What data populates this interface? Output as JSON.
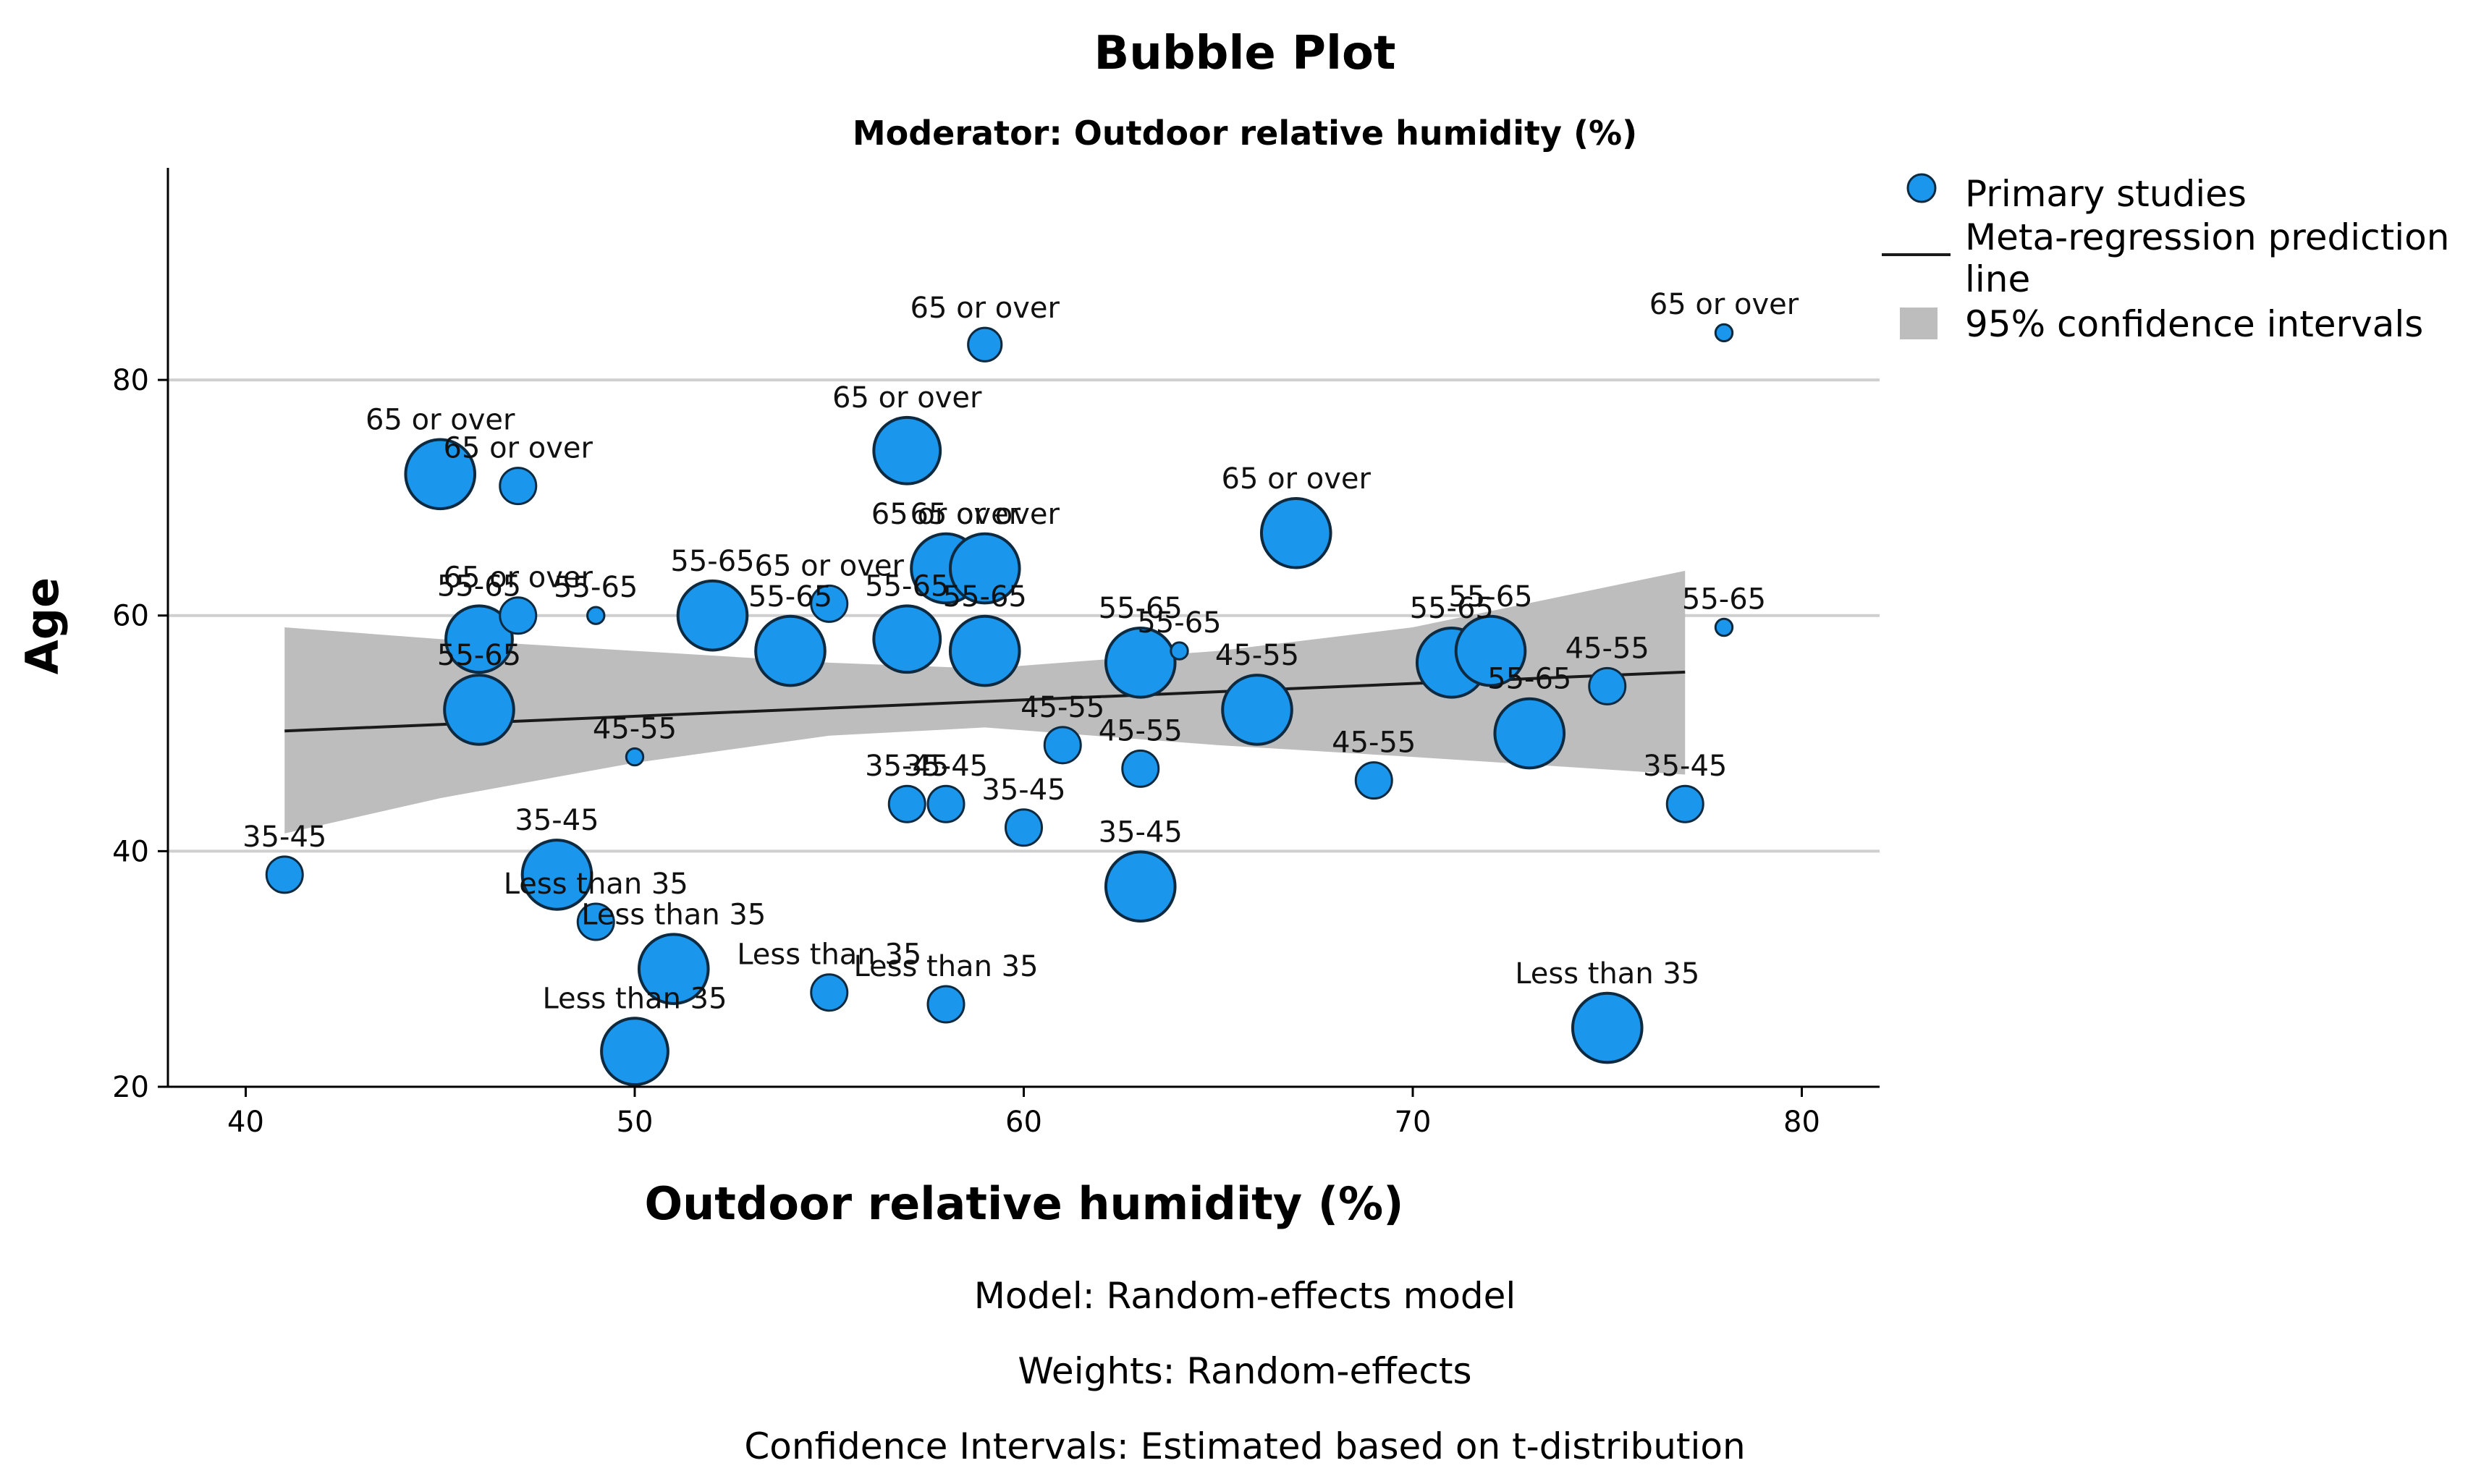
{
  "colors": {
    "bubble_fill": "#1a96ec",
    "bubble_stroke": "#0d2a40",
    "ci_fill": "#bdbdbd",
    "line": "#1a1a1a",
    "grid": "#cfcfcf",
    "axis": "#000000"
  },
  "chart_data": {
    "type": "scatter",
    "title": "Bubble Plot",
    "subtitle": "Moderator: Outdoor relative humidity (%)",
    "xlabel": "Outdoor relative humidity (%)",
    "ylabel": "Age",
    "xlim": [
      38,
      82
    ],
    "ylim": [
      20,
      98
    ],
    "xticks": [
      40,
      50,
      60,
      70,
      80
    ],
    "yticks": [
      20,
      40,
      60,
      80
    ],
    "grid": "horizontal",
    "legend_position": "top-right",
    "legend": [
      {
        "kind": "marker",
        "label": "Primary studies"
      },
      {
        "kind": "line",
        "label": "Meta-regression prediction line"
      },
      {
        "kind": "area",
        "label": "95% confidence intervals"
      }
    ],
    "regression_line": {
      "x": [
        41,
        77
      ],
      "y": [
        50.2,
        55.2
      ]
    },
    "confidence_band": {
      "x": [
        41,
        45,
        50,
        55,
        59,
        65,
        70,
        77
      ],
      "lower": [
        41.5,
        44.5,
        47.5,
        49.8,
        50.5,
        49.0,
        48.0,
        46.5
      ],
      "upper": [
        59.0,
        58.0,
        57.0,
        56.0,
        55.5,
        57.0,
        59.0,
        63.8
      ]
    },
    "points": [
      {
        "x": 41,
        "y": 38,
        "size": 1.0,
        "label": "35-45"
      },
      {
        "x": 45,
        "y": 72,
        "size": 2.2,
        "label": "65 or over"
      },
      {
        "x": 46,
        "y": 58,
        "size": 2.1,
        "label": "55-65"
      },
      {
        "x": 46,
        "y": 52,
        "size": 2.2,
        "label": "55-65"
      },
      {
        "x": 47,
        "y": 71,
        "size": 1.0,
        "label": "65 or over"
      },
      {
        "x": 47,
        "y": 60,
        "size": 1.0,
        "label": "65 or over"
      },
      {
        "x": 48,
        "y": 38,
        "size": 2.2,
        "label": "35-45"
      },
      {
        "x": 49,
        "y": 60,
        "size": 0.3,
        "label": "55-65"
      },
      {
        "x": 49,
        "y": 34,
        "size": 1.0,
        "label": "Less than 35"
      },
      {
        "x": 50,
        "y": 48,
        "size": 0.3,
        "label": "45-55"
      },
      {
        "x": 50,
        "y": 23,
        "size": 2.1,
        "label": "Less than 35"
      },
      {
        "x": 51,
        "y": 30,
        "size": 2.2,
        "label": "Less than 35"
      },
      {
        "x": 52,
        "y": 60,
        "size": 2.2,
        "label": "55-65"
      },
      {
        "x": 54,
        "y": 57,
        "size": 2.2,
        "label": "55-65"
      },
      {
        "x": 55,
        "y": 61,
        "size": 1.0,
        "label": "65 or over"
      },
      {
        "x": 55,
        "y": 28,
        "size": 1.0,
        "label": "Less than 35"
      },
      {
        "x": 57,
        "y": 74,
        "size": 2.1,
        "label": "65 or over"
      },
      {
        "x": 57,
        "y": 58,
        "size": 2.1,
        "label": "55-65"
      },
      {
        "x": 57,
        "y": 44,
        "size": 1.0,
        "label": "35-45"
      },
      {
        "x": 58,
        "y": 64,
        "size": 2.2,
        "label": "65 or over"
      },
      {
        "x": 58,
        "y": 44,
        "size": 1.0,
        "label": "35-45"
      },
      {
        "x": 58,
        "y": 27,
        "size": 1.0,
        "label": "Less than 35"
      },
      {
        "x": 59,
        "y": 83,
        "size": 0.9,
        "label": "65 or over"
      },
      {
        "x": 59,
        "y": 64,
        "size": 2.2,
        "label": "65 or over"
      },
      {
        "x": 59,
        "y": 57,
        "size": 2.2,
        "label": "55-65"
      },
      {
        "x": 60,
        "y": 42,
        "size": 1.0,
        "label": "35-45"
      },
      {
        "x": 61,
        "y": 49,
        "size": 1.0,
        "label": "45-55"
      },
      {
        "x": 63,
        "y": 56,
        "size": 2.2,
        "label": "55-65"
      },
      {
        "x": 63,
        "y": 47,
        "size": 1.0,
        "label": "45-55"
      },
      {
        "x": 63,
        "y": 37,
        "size": 2.2,
        "label": "35-45"
      },
      {
        "x": 64,
        "y": 57,
        "size": 0.3,
        "label": "55-65"
      },
      {
        "x": 66,
        "y": 52,
        "size": 2.2,
        "label": "45-55"
      },
      {
        "x": 67,
        "y": 67,
        "size": 2.2,
        "label": "65 or over"
      },
      {
        "x": 69,
        "y": 46,
        "size": 1.0,
        "label": "45-55"
      },
      {
        "x": 71,
        "y": 56,
        "size": 2.2,
        "label": "55-65"
      },
      {
        "x": 72,
        "y": 57,
        "size": 2.2,
        "label": "55-65"
      },
      {
        "x": 73,
        "y": 50,
        "size": 2.2,
        "label": "55-65"
      },
      {
        "x": 75,
        "y": 54,
        "size": 1.0,
        "label": "45-55"
      },
      {
        "x": 75,
        "y": 25,
        "size": 2.2,
        "label": "Less than 35"
      },
      {
        "x": 77,
        "y": 44,
        "size": 1.0,
        "label": "35-45"
      },
      {
        "x": 78,
        "y": 84,
        "size": 0.3,
        "label": "65 or over"
      },
      {
        "x": 78,
        "y": 59,
        "size": 0.3,
        "label": "55-65"
      }
    ]
  },
  "notes": {
    "model": "Model: Random-effects model",
    "weights": "Weights: Random-effects",
    "ci": "Confidence Intervals: Estimated based on t-distribution"
  }
}
